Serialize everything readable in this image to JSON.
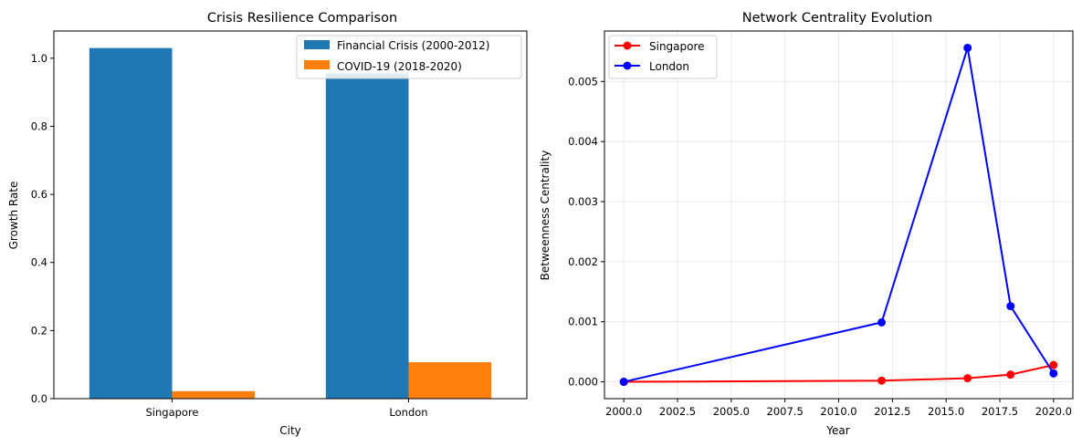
{
  "chart_data": [
    {
      "type": "bar",
      "title": "Crisis Resilience Comparison",
      "xlabel": "City",
      "ylabel": "Growth Rate",
      "categories": [
        "Singapore",
        "London"
      ],
      "series": [
        {
          "name": "Financial Crisis (2000-2012)",
          "values": [
            1.03,
            0.955
          ],
          "color": "#1f77b4"
        },
        {
          "name": "COVID-19 (2018-2020)",
          "values": [
            0.022,
            0.107
          ],
          "color": "#ff7f0e"
        }
      ],
      "ylim": [
        0,
        1.08
      ],
      "yticks": [
        "0.0",
        "0.2",
        "0.4",
        "0.6",
        "0.8",
        "1.0"
      ],
      "grid": false,
      "legend": "upper right"
    },
    {
      "type": "line",
      "title": "Network Centrality Evolution",
      "xlabel": "Year",
      "ylabel": "Betweenness Centrality",
      "series": [
        {
          "name": "Singapore",
          "color": "#ff0000",
          "x": [
            2000,
            2012,
            2016,
            2018,
            2020
          ],
          "y": [
            0.0,
            2e-05,
            6e-05,
            0.00012,
            0.00028
          ]
        },
        {
          "name": "London",
          "color": "#0000ff",
          "x": [
            2000,
            2012,
            2016,
            2018,
            2020
          ],
          "y": [
            0.0,
            0.00099,
            0.00556,
            0.00126,
            0.00014
          ]
        }
      ],
      "xlim": [
        1999.1,
        2020.9
      ],
      "ylim": [
        -0.00028,
        0.00584
      ],
      "xticks": [
        "2000.0",
        "2002.5",
        "2005.0",
        "2007.5",
        "2010.0",
        "2012.5",
        "2015.0",
        "2017.5",
        "2020.0"
      ],
      "yticks": [
        "0.000",
        "0.001",
        "0.002",
        "0.003",
        "0.004",
        "0.005"
      ],
      "grid": true,
      "legend": "upper left"
    }
  ]
}
